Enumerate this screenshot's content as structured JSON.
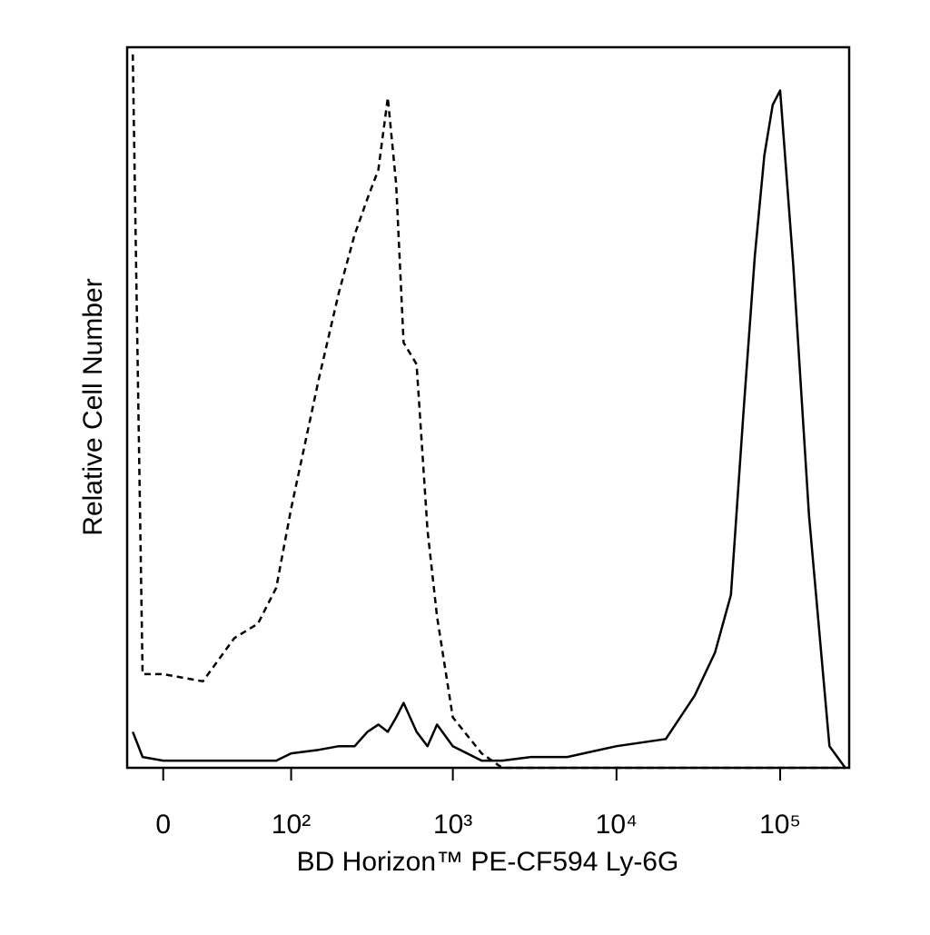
{
  "chart_data": {
    "type": "line",
    "xlabel": "BD Horizon™ PE-CF594 Ly-6G",
    "ylabel": "Relative Cell Number",
    "xscale": "biexponential",
    "x": [
      -15,
      -10,
      0,
      20,
      40,
      60,
      80,
      100,
      150,
      200,
      250,
      300,
      350,
      400,
      450,
      500,
      600,
      700,
      800,
      1000,
      1500,
      2000,
      3000,
      5000,
      10000,
      20000,
      30000,
      40000,
      50000,
      60000,
      70000,
      80000,
      90000,
      100000,
      120000,
      150000,
      200000,
      250000
    ],
    "series": [
      {
        "color": "#000000",
        "dash": true,
        "values": [
          99,
          13,
          13,
          12,
          18,
          20,
          25,
          36,
          54,
          66,
          74,
          79,
          83,
          93,
          81,
          59,
          56,
          33,
          21,
          7,
          2,
          0,
          0,
          0,
          0,
          0,
          0,
          0,
          0,
          0,
          0,
          0,
          0,
          0,
          0,
          0,
          0,
          0
        ]
      },
      {
        "color": "#000000",
        "dash": false,
        "values": [
          5,
          1.5,
          1,
          1,
          1,
          1,
          1,
          2,
          2.5,
          3,
          3,
          5,
          6,
          5,
          7,
          9,
          5,
          3,
          6,
          3,
          1,
          1,
          1.5,
          1.5,
          3,
          4,
          10,
          16,
          24,
          50,
          71,
          85,
          92,
          94,
          70,
          35,
          3,
          0
        ]
      }
    ],
    "xlim": [
      -18,
      264000
    ],
    "xticks": [
      0,
      {
        "value": 100,
        "label": "10²"
      },
      {
        "value": 1000,
        "label": "10³"
      },
      {
        "value": 10000,
        "label": "10⁴"
      },
      {
        "value": 100000,
        "label": "10⁵"
      }
    ],
    "ylim": [
      0,
      100
    ]
  }
}
